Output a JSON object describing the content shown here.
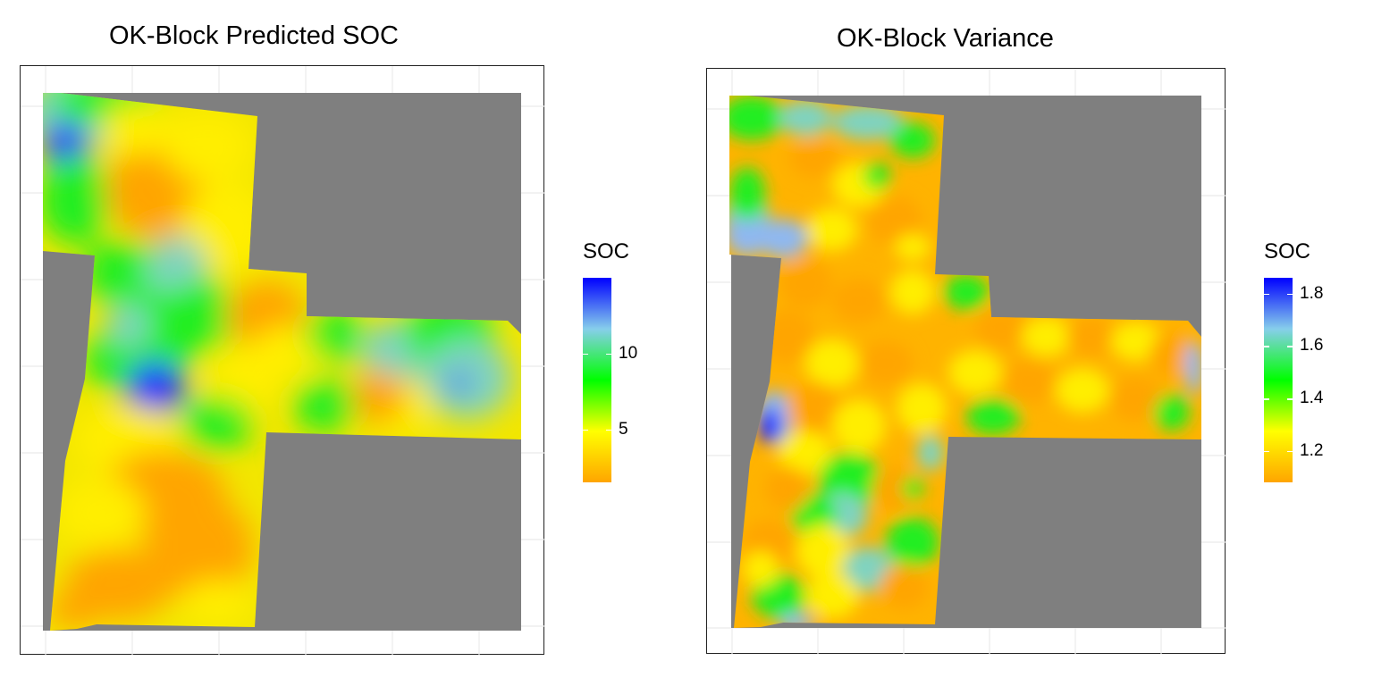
{
  "chart_data": [
    {
      "type": "heatmap",
      "title": "OK-Block Predicted SOC",
      "legend": {
        "title": "SOC",
        "ticks": [
          {
            "value": 5,
            "label": "5"
          },
          {
            "value": 10,
            "label": "10"
          }
        ],
        "range": [
          1.5,
          15
        ]
      },
      "colors": {
        "low": "#ffa500",
        "mid_low": "#ffff00",
        "mid": "#00ff00",
        "mid_high": "#87ceeb",
        "high": "#0000ff",
        "na": "#7f7f7f"
      },
      "grid": true,
      "legend_position": "right"
    },
    {
      "type": "heatmap",
      "title": "OK-Block Variance",
      "legend": {
        "title": "SOC",
        "ticks": [
          {
            "value": 1.2,
            "label": "1.2"
          },
          {
            "value": 1.4,
            "label": "1.4"
          },
          {
            "value": 1.6,
            "label": "1.6"
          },
          {
            "value": 1.8,
            "label": "1.8"
          }
        ],
        "range": [
          1.08,
          1.86
        ]
      },
      "colors": {
        "low": "#ffa500",
        "mid_low": "#ffff00",
        "mid": "#00ff00",
        "mid_high": "#87ceeb",
        "high": "#0000ff",
        "na": "#7f7f7f"
      },
      "grid": true,
      "legend_position": "right"
    }
  ]
}
